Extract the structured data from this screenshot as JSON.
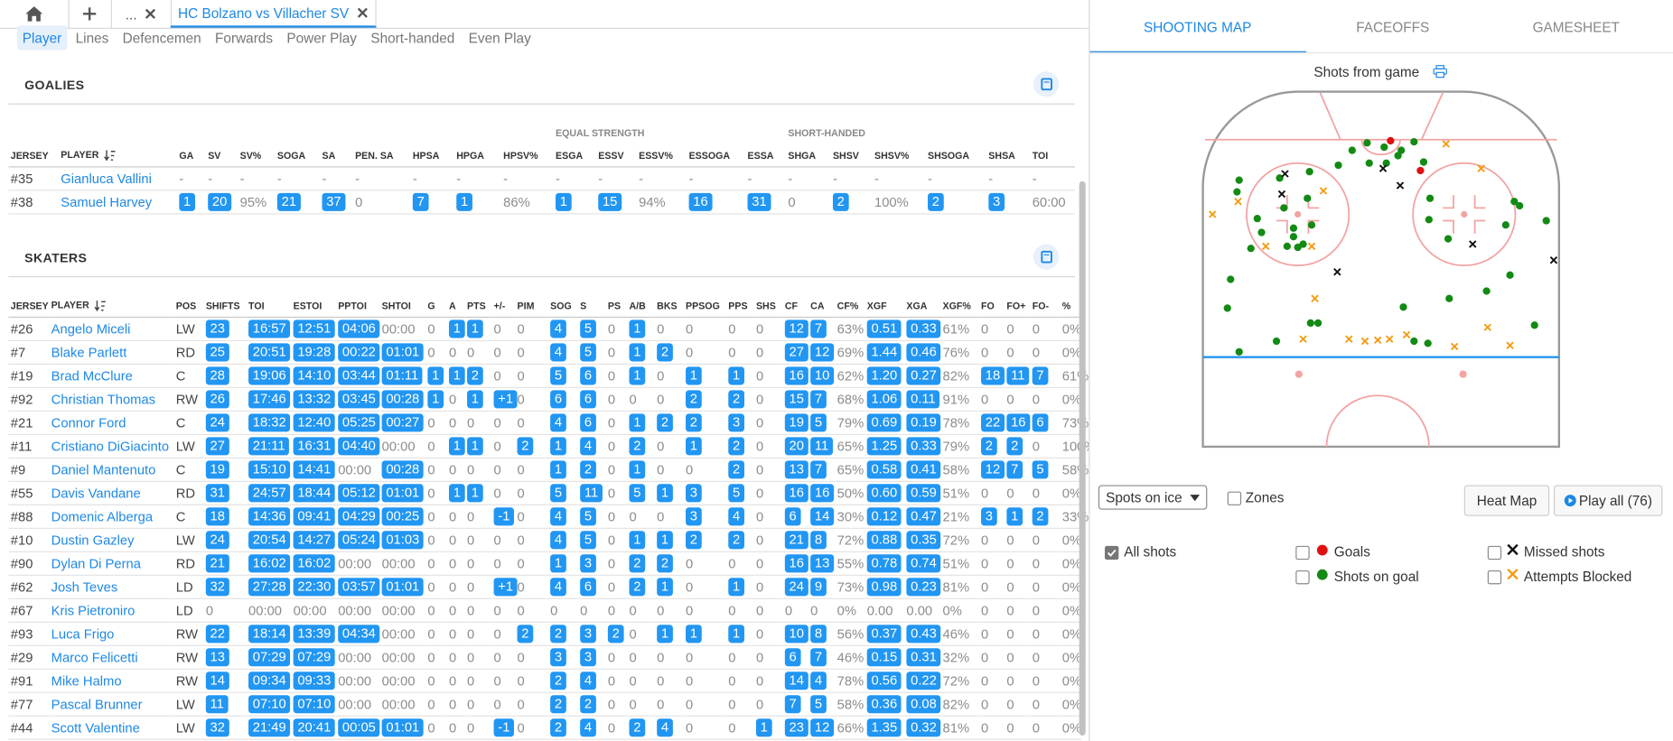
{
  "tabs": [
    "...",
    "HC Bolzano vs Villacher SV"
  ],
  "subtabs": [
    "Player",
    "Lines",
    "Defencemen",
    "Forwards",
    "Power Play",
    "Short-handed",
    "Even Play"
  ],
  "goalies": {
    "title": "GOALIES",
    "groups": [
      "EQUAL STRENGTH",
      "SHORT-HANDED"
    ],
    "columns": [
      "JERSEY",
      "PLAYER",
      "GA",
      "SV",
      "SV%",
      "SOGA",
      "SA",
      "PEN. SA",
      "HPSA",
      "HPGA",
      "HPSV%",
      "ESGA",
      "ESSV",
      "ESSV%",
      "ESSOGA",
      "ESSA",
      "SHGA",
      "SHSV",
      "SHSV%",
      "SHSOGA",
      "SHSA",
      "TOI"
    ],
    "rows": [
      [
        "#35",
        "Gianluca Vallini",
        "-",
        "-",
        "-",
        "-",
        "-",
        "-",
        "-",
        "-",
        "-",
        "-",
        "-",
        "-",
        "-",
        "-",
        "-",
        "-",
        "-",
        "-",
        "-",
        "-"
      ],
      [
        "#38",
        "Samuel Harvey",
        "1",
        "20",
        "95%",
        "21",
        "37",
        "0",
        "7",
        "1",
        "86%",
        "1",
        "15",
        "94%",
        "16",
        "31",
        "0",
        "2",
        "100%",
        "2",
        "3",
        "60:00"
      ]
    ]
  },
  "skaters": {
    "title": "SKATERS",
    "columns": [
      "JERSEY",
      "PLAYER",
      "POS",
      "SHIFTS",
      "TOI",
      "ESTOI",
      "PPTOI",
      "SHTOI",
      "G",
      "A",
      "PTS",
      "+/-",
      "PIM",
      "SOG",
      "S",
      "PS",
      "A/B",
      "BKS",
      "PPSOG",
      "PPS",
      "SHS",
      "CF",
      "CA",
      "CF%",
      "XGF",
      "XGA",
      "XGF%",
      "FO",
      "FO+",
      "FO-",
      "%"
    ],
    "rows": [
      [
        "#26",
        "Angelo Miceli",
        "LW",
        "23",
        "16:57",
        "12:51",
        "04:06",
        "00:00",
        "0",
        "1",
        "1",
        "0",
        "0",
        "4",
        "5",
        "0",
        "1",
        "0",
        "0",
        "0",
        "0",
        "12",
        "7",
        "63%",
        "0.51",
        "0.33",
        "61%",
        "0",
        "0",
        "0",
        "0%"
      ],
      [
        "#7",
        "Blake Parlett",
        "RD",
        "25",
        "20:51",
        "19:28",
        "00:22",
        "01:01",
        "0",
        "0",
        "0",
        "0",
        "0",
        "4",
        "5",
        "0",
        "1",
        "2",
        "0",
        "0",
        "0",
        "27",
        "12",
        "69%",
        "1.44",
        "0.46",
        "76%",
        "0",
        "0",
        "0",
        "0%"
      ],
      [
        "#19",
        "Brad McClure",
        "C",
        "28",
        "19:06",
        "14:10",
        "03:44",
        "01:11",
        "1",
        "1",
        "2",
        "0",
        "0",
        "5",
        "6",
        "0",
        "1",
        "0",
        "1",
        "1",
        "0",
        "16",
        "10",
        "62%",
        "1.20",
        "0.27",
        "82%",
        "18",
        "11",
        "7",
        "61%"
      ],
      [
        "#92",
        "Christian Thomas",
        "RW",
        "26",
        "17:46",
        "13:32",
        "03:45",
        "00:28",
        "1",
        "0",
        "1",
        "+1",
        "0",
        "6",
        "6",
        "0",
        "0",
        "0",
        "2",
        "2",
        "0",
        "15",
        "7",
        "68%",
        "1.06",
        "0.11",
        "91%",
        "0",
        "0",
        "0",
        "0%"
      ],
      [
        "#21",
        "Connor Ford",
        "C",
        "24",
        "18:32",
        "12:40",
        "05:25",
        "00:27",
        "0",
        "0",
        "0",
        "0",
        "0",
        "4",
        "6",
        "0",
        "1",
        "2",
        "2",
        "3",
        "0",
        "19",
        "5",
        "79%",
        "0.69",
        "0.19",
        "78%",
        "22",
        "16",
        "6",
        "73%"
      ],
      [
        "#11",
        "Cristiano DiGiacinto",
        "LW",
        "27",
        "21:11",
        "16:31",
        "04:40",
        "00:00",
        "0",
        "1",
        "1",
        "0",
        "2",
        "1",
        "4",
        "0",
        "2",
        "0",
        "1",
        "2",
        "0",
        "20",
        "11",
        "65%",
        "1.25",
        "0.33",
        "79%",
        "2",
        "2",
        "0",
        "100%"
      ],
      [
        "#9",
        "Daniel Mantenuto",
        "C",
        "19",
        "15:10",
        "14:41",
        "00:00",
        "00:28",
        "0",
        "0",
        "0",
        "0",
        "0",
        "1",
        "2",
        "0",
        "1",
        "0",
        "0",
        "2",
        "0",
        "13",
        "7",
        "65%",
        "0.58",
        "0.41",
        "58%",
        "12",
        "7",
        "5",
        "58%"
      ],
      [
        "#55",
        "Davis Vandane",
        "RD",
        "31",
        "24:57",
        "18:44",
        "05:12",
        "01:01",
        "0",
        "1",
        "1",
        "0",
        "0",
        "5",
        "11",
        "0",
        "5",
        "1",
        "3",
        "5",
        "0",
        "16",
        "16",
        "50%",
        "0.60",
        "0.59",
        "51%",
        "0",
        "0",
        "0",
        "0%"
      ],
      [
        "#88",
        "Domenic Alberga",
        "C",
        "18",
        "14:36",
        "09:41",
        "04:29",
        "00:25",
        "0",
        "0",
        "0",
        "-1",
        "0",
        "4",
        "5",
        "0",
        "0",
        "0",
        "3",
        "4",
        "0",
        "6",
        "14",
        "30%",
        "0.12",
        "0.47",
        "21%",
        "3",
        "1",
        "2",
        "33%"
      ],
      [
        "#10",
        "Dustin Gazley",
        "LW",
        "24",
        "20:54",
        "14:27",
        "05:24",
        "01:03",
        "0",
        "0",
        "0",
        "0",
        "0",
        "4",
        "5",
        "0",
        "1",
        "1",
        "2",
        "2",
        "0",
        "21",
        "8",
        "72%",
        "0.88",
        "0.35",
        "72%",
        "0",
        "0",
        "0",
        "0%"
      ],
      [
        "#90",
        "Dylan Di Perna",
        "RD",
        "21",
        "16:02",
        "16:02",
        "00:00",
        "00:00",
        "0",
        "0",
        "0",
        "0",
        "0",
        "1",
        "3",
        "0",
        "2",
        "2",
        "0",
        "0",
        "0",
        "16",
        "13",
        "55%",
        "0.78",
        "0.74",
        "51%",
        "0",
        "0",
        "0",
        "0%"
      ],
      [
        "#62",
        "Josh Teves",
        "LD",
        "32",
        "27:28",
        "22:30",
        "03:57",
        "01:01",
        "0",
        "0",
        "0",
        "+1",
        "0",
        "4",
        "6",
        "0",
        "2",
        "1",
        "0",
        "1",
        "0",
        "24",
        "9",
        "73%",
        "0.98",
        "0.23",
        "81%",
        "0",
        "0",
        "0",
        "0%"
      ],
      [
        "#67",
        "Kris Pietroniro",
        "LD",
        "0",
        "00:00",
        "00:00",
        "00:00",
        "00:00",
        "0",
        "0",
        "0",
        "0",
        "0",
        "0",
        "0",
        "0",
        "0",
        "0",
        "0",
        "0",
        "0",
        "0",
        "0",
        "0%",
        "0.00",
        "0.00",
        "0%",
        "0",
        "0",
        "0",
        "0%"
      ],
      [
        "#93",
        "Luca Frigo",
        "RW",
        "22",
        "18:14",
        "13:39",
        "04:34",
        "00:00",
        "0",
        "0",
        "0",
        "0",
        "2",
        "2",
        "3",
        "2",
        "0",
        "1",
        "1",
        "1",
        "0",
        "10",
        "8",
        "56%",
        "0.37",
        "0.43",
        "46%",
        "0",
        "0",
        "0",
        "0%"
      ],
      [
        "#29",
        "Marco Felicetti",
        "RW",
        "13",
        "07:29",
        "07:29",
        "00:00",
        "00:00",
        "0",
        "0",
        "0",
        "0",
        "0",
        "3",
        "3",
        "0",
        "0",
        "0",
        "0",
        "0",
        "0",
        "6",
        "7",
        "46%",
        "0.15",
        "0.31",
        "32%",
        "0",
        "0",
        "0",
        "0%"
      ],
      [
        "#91",
        "Mike Halmo",
        "RW",
        "14",
        "09:34",
        "09:33",
        "00:00",
        "00:00",
        "0",
        "0",
        "0",
        "0",
        "0",
        "2",
        "4",
        "0",
        "0",
        "0",
        "0",
        "0",
        "0",
        "14",
        "4",
        "78%",
        "0.56",
        "0.22",
        "72%",
        "0",
        "0",
        "0",
        "0%"
      ],
      [
        "#77",
        "Pascal Brunner",
        "LW",
        "11",
        "07:10",
        "07:10",
        "00:00",
        "00:00",
        "0",
        "0",
        "0",
        "0",
        "0",
        "2",
        "2",
        "0",
        "0",
        "0",
        "0",
        "0",
        "0",
        "7",
        "5",
        "58%",
        "0.36",
        "0.08",
        "82%",
        "0",
        "0",
        "0",
        "0%"
      ],
      [
        "#44",
        "Scott Valentine",
        "LW",
        "32",
        "21:49",
        "20:41",
        "00:05",
        "01:01",
        "0",
        "0",
        "0",
        "-1",
        "0",
        "2",
        "4",
        "0",
        "2",
        "4",
        "0",
        "0",
        "1",
        "23",
        "12",
        "66%",
        "1.35",
        "0.32",
        "81%",
        "0",
        "0",
        "0",
        "0%"
      ]
    ]
  },
  "shot_panel": {
    "tabs": [
      "SHOOTING MAP",
      "FACEOFFS",
      "GAMESHEET"
    ],
    "title": "Shots from game",
    "view_select": "Spots on ice",
    "zones": "Zones",
    "heat_map": "Heat Map",
    "play_all": "Play all (76)",
    "legend": [
      "All shots",
      "Goals",
      "Shots on goal",
      "Missed shots",
      "Attempts Blocked"
    ]
  }
}
